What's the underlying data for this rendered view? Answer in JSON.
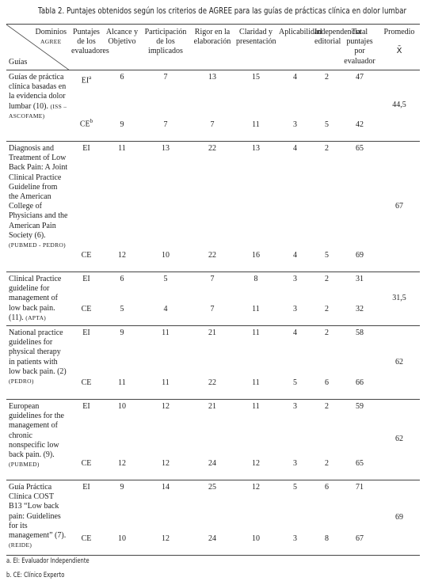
{
  "title": "Tabla 2. Puntajes obtenidos según los criterios de AGREE para las guías de prácticas clínica en dolor lumbar",
  "table": {
    "corner": {
      "top": "Dominios",
      "top_small": "AGREE",
      "bottom": "Guías"
    },
    "headers": [
      "Puntajes de los evaluadores",
      "Alcance y Objetivo",
      "Participación de los implicados",
      "Rigor en la elaboración",
      "Claridad y presentación",
      "Aplicabilidad",
      "Independencia editorial",
      "Total puntajes por evaluador"
    ],
    "average_header": "Promedio",
    "average_symbol": "X̄",
    "groups": [
      {
        "guide": "Guías de práctica clínica basadas en la evidencia dolor lumbar (10).",
        "source": "(ISS – ASCOFAME)",
        "rows": [
          {
            "evaluator": "EI",
            "note": "a",
            "scores": [
              6,
              7,
              13,
              15,
              4,
              2,
              47
            ]
          },
          {
            "evaluator": "CE",
            "note": "b",
            "scores": [
              9,
              7,
              7,
              11,
              3,
              5,
              42
            ]
          }
        ],
        "average": "44,5"
      },
      {
        "guide": "Diagnosis and Treatment of Low Back Pain: A Joint Clinical Practice Guideline from the American College of Physicians and the American Pain Society (6).",
        "source": "(PUBMED - PEDRO)",
        "rows": [
          {
            "evaluator": "EI",
            "scores": [
              11,
              13,
              22,
              13,
              4,
              2,
              65
            ]
          },
          {
            "evaluator": "CE",
            "scores": [
              12,
              10,
              22,
              16,
              4,
              5,
              69
            ]
          }
        ],
        "average": "67"
      },
      {
        "guide": "Clinical Practice guideline for management of low back pain. (11).",
        "source": "(APTA)",
        "rows": [
          {
            "evaluator": "EI",
            "scores": [
              6,
              5,
              7,
              8,
              3,
              2,
              31
            ]
          },
          {
            "evaluator": "CE",
            "scores": [
              5,
              4,
              7,
              11,
              3,
              2,
              32
            ]
          }
        ],
        "average": "31,5"
      },
      {
        "guide": "National practice guidelines for physical therapy in patients with low back pain. (2)",
        "source": "(PEDRO)",
        "rows": [
          {
            "evaluator": "EI",
            "scores": [
              9,
              11,
              21,
              11,
              4,
              2,
              58
            ]
          },
          {
            "evaluator": "CE",
            "scores": [
              11,
              11,
              22,
              11,
              5,
              6,
              66
            ]
          }
        ],
        "average": "62"
      },
      {
        "guide": "European guidelines for the management of chronic nonspecific low back pain. (9).",
        "source": "(PUBMED)",
        "rows": [
          {
            "evaluator": "EI",
            "scores": [
              10,
              12,
              21,
              11,
              3,
              2,
              59
            ]
          },
          {
            "evaluator": "CE",
            "scores": [
              12,
              12,
              24,
              12,
              3,
              2,
              65
            ]
          }
        ],
        "average": "62"
      },
      {
        "guide": "Guía Práctica Clínica COST B13 “Low back pain: Guidelines for its management” (7).",
        "source": "(REIDE)",
        "rows": [
          {
            "evaluator": "EI",
            "scores": [
              9,
              14,
              25,
              12,
              5,
              6,
              71
            ]
          },
          {
            "evaluator": "CE",
            "scores": [
              10,
              12,
              24,
              10,
              3,
              8,
              67
            ]
          }
        ],
        "average": "69"
      }
    ]
  },
  "footnotes": [
    "a. EI: Evaluador Independiente",
    "b. CE: Clínico Experto"
  ]
}
